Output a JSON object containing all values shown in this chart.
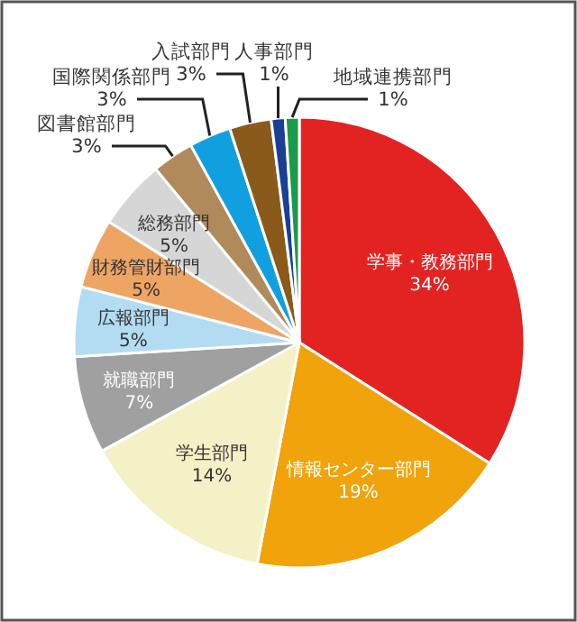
{
  "chart_data": {
    "type": "pie",
    "categories": [
      "学事・教務部門",
      "情報センター部門",
      "学生部門",
      "就職部門",
      "広報部門",
      "財務管財部門",
      "総務部門",
      "図書館部門",
      "国際関係部門",
      "入試部門",
      "人事部門",
      "地域連携部門"
    ],
    "values": [
      34,
      19,
      14,
      7,
      5,
      5,
      5,
      3,
      3,
      3,
      1,
      1
    ],
    "value_labels": [
      "34%",
      "19%",
      "14%",
      "7%",
      "5%",
      "5%",
      "5%",
      "3%",
      "3%",
      "3%",
      "1%",
      "1%"
    ],
    "colors": [
      "#e32322",
      "#f0a30a",
      "#f5f1c6",
      "#a0a0a0",
      "#b3dcf2",
      "#eea463",
      "#d6d6d6",
      "#b08a5a",
      "#10a0e0",
      "#8a5a1a",
      "#1a3f96",
      "#1a9a4a"
    ]
  }
}
